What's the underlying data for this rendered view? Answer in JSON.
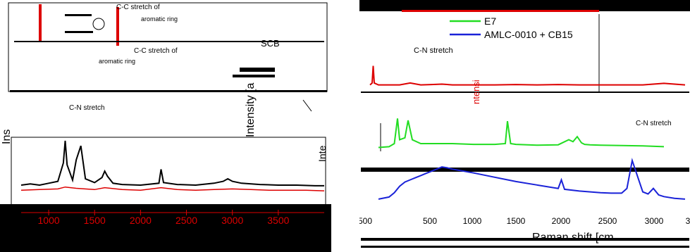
{
  "chart_data": [
    {
      "type": "line",
      "panel": "left",
      "xlabel": "",
      "ylabel": "Intensity [a",
      "ylabel_left_fragment": "Ins",
      "ylabel_right_fragment": "Inte",
      "xlim": [
        700,
        4000
      ],
      "xticks": [
        "1000",
        "1500",
        "2000",
        "2500",
        "3000",
        "3500"
      ],
      "annotations": [
        "C-C stretch of",
        "aromatic ring",
        "SCB",
        "C-C stretch of",
        "aromatic ring",
        "C-N stretch"
      ],
      "series": [
        {
          "name": "",
          "color": "#000000",
          "x": [
            700,
            800,
            900,
            1000,
            1100,
            1160,
            1180,
            1200,
            1260,
            1300,
            1350,
            1400,
            1500,
            1580,
            1610,
            1640,
            1700,
            1800,
            2000,
            2200,
            2223,
            2250,
            2400,
            2600,
            2800,
            2900,
            2950,
            3000,
            3100,
            3300,
            3500,
            3700,
            3900,
            4000
          ],
          "y": [
            0.3,
            0.32,
            0.3,
            0.33,
            0.36,
            0.65,
            1.0,
            0.62,
            0.38,
            0.7,
            0.92,
            0.4,
            0.34,
            0.42,
            0.52,
            0.44,
            0.33,
            0.31,
            0.3,
            0.33,
            0.55,
            0.34,
            0.31,
            0.3,
            0.33,
            0.36,
            0.4,
            0.36,
            0.33,
            0.31,
            0.3,
            0.3,
            0.29,
            0.29
          ]
        },
        {
          "name": "",
          "color": "#dd0000",
          "x": [
            700,
            900,
            1100,
            1180,
            1300,
            1500,
            1610,
            1800,
            2000,
            2223,
            2400,
            2600,
            2800,
            3000,
            3200,
            3400,
            3600,
            3800,
            4000
          ],
          "y": [
            0.22,
            0.23,
            0.24,
            0.27,
            0.25,
            0.23,
            0.26,
            0.23,
            0.22,
            0.26,
            0.23,
            0.22,
            0.23,
            0.24,
            0.23,
            0.22,
            0.22,
            0.22,
            0.21
          ]
        }
      ]
    },
    {
      "type": "line",
      "panel": "right",
      "xlabel": "Raman shift [cm",
      "ylabel": "ntensi",
      "xlim": [
        400,
        3400
      ],
      "xticks": [
        "500",
        "500",
        "1000",
        "1500",
        "2000",
        "2500",
        "3000",
        "3"
      ],
      "annotations": [
        "C-N stretch",
        "C-N stretch"
      ],
      "series": [
        {
          "name": "",
          "color": "#dd0000",
          "x": [
            420,
            440,
            450,
            460,
            500,
            700,
            800,
            900,
            1000,
            1100,
            1200,
            1400,
            1600,
            1800,
            2000,
            2200,
            2400,
            2600,
            2800,
            2900,
            3000,
            3100,
            3200,
            3300,
            3400
          ],
          "y": [
            0.1,
            0.15,
            0.6,
            0.15,
            0.1,
            0.1,
            0.15,
            0.1,
            0.11,
            0.12,
            0.1,
            0.1,
            0.1,
            0.11,
            0.1,
            0.11,
            0.1,
            0.1,
            0.1,
            0.1,
            0.1,
            0.12,
            0.14,
            0.12,
            0.1
          ]
        },
        {
          "name": "E7",
          "color": "#22dd22",
          "x": [
            500,
            600,
            650,
            680,
            700,
            750,
            780,
            820,
            900,
            1000,
            1100,
            1200,
            1400,
            1600,
            1700,
            1720,
            1750,
            1800,
            2000,
            2200,
            2300,
            2340,
            2380,
            2420,
            2450,
            2500,
            2600,
            2800,
            3000,
            3200
          ],
          "y": [
            0.1,
            0.12,
            0.2,
            0.85,
            0.3,
            0.35,
            0.8,
            0.3,
            0.2,
            0.2,
            0.2,
            0.2,
            0.18,
            0.18,
            0.2,
            0.78,
            0.2,
            0.18,
            0.16,
            0.17,
            0.3,
            0.25,
            0.38,
            0.22,
            0.18,
            0.17,
            0.16,
            0.15,
            0.14,
            0.12
          ]
        },
        {
          "name": "AMLC-0010 + CB15",
          "color": "#1a22d8",
          "x": [
            500,
            600,
            650,
            700,
            750,
            800,
            850,
            900,
            950,
            1000,
            1050,
            1100,
            1150,
            1200,
            1400,
            1600,
            1800,
            2000,
            2200,
            2230,
            2260,
            2400,
            2600,
            2700,
            2800,
            2850,
            2900,
            3000,
            3050,
            3100,
            3150,
            3200,
            3300,
            3400
          ],
          "y": [
            0.05,
            0.1,
            0.2,
            0.35,
            0.45,
            0.5,
            0.55,
            0.6,
            0.65,
            0.7,
            0.75,
            0.8,
            0.78,
            0.75,
            0.66,
            0.56,
            0.46,
            0.38,
            0.3,
            0.5,
            0.28,
            0.24,
            0.2,
            0.19,
            0.19,
            0.3,
            0.95,
            0.22,
            0.17,
            0.3,
            0.15,
            0.11,
            0.07,
            0.05
          ]
        }
      ]
    }
  ]
}
